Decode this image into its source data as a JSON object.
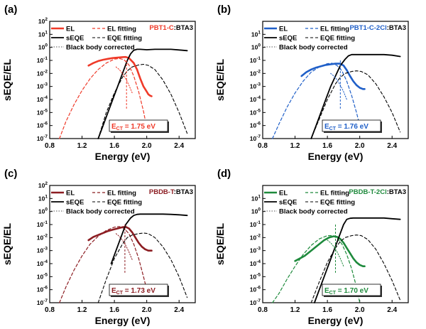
{
  "axis_labels": {
    "x": "Energy (eV)",
    "y": "sEQE/EL"
  },
  "legend_text": {
    "el": "EL",
    "el_fit": "EL fitting",
    "seqe": "sEQE",
    "eqe_fit": "EQE fitting",
    "bb": "Black body corrected"
  },
  "chart_data": [
    {
      "type": "line",
      "panel": "(a)",
      "material": "PBT1-C",
      "acceptor": ":BTA3",
      "color": "#ef3a29",
      "ect_label": "E",
      "ect_sub": "CT",
      "ect_value": " = 1.75 eV",
      "ect": 1.75,
      "xlim": [
        0.8,
        2.6
      ],
      "ylim_log10": [
        -7,
        2
      ],
      "x_ticks": [
        "0.8",
        "1.2",
        "1.6",
        "2.0",
        "2.4"
      ],
      "y_ticks": [
        "10-7",
        "10-6",
        "10-5",
        "10-4",
        "10-3",
        "10-2",
        "10-1",
        "100",
        "101",
        "102"
      ],
      "series": [
        {
          "name": "EL",
          "x": [
            1.28,
            1.34,
            1.4,
            1.46,
            1.52,
            1.58,
            1.64,
            1.7,
            1.74,
            1.78,
            1.84,
            1.88,
            1.92,
            1.96,
            2.0,
            2.02,
            2.04,
            2.06
          ],
          "log10_y": [
            -1.4,
            -1.2,
            -1.05,
            -0.95,
            -0.88,
            -0.82,
            -0.78,
            -0.75,
            -0.74,
            -0.82,
            -1.2,
            -1.7,
            -2.4,
            -3.0,
            -3.4,
            -3.6,
            -3.7,
            -3.75
          ]
        },
        {
          "name": "EL fitting",
          "x": [
            0.92,
            1.0,
            1.1,
            1.2,
            1.3,
            1.4,
            1.5,
            1.6,
            1.66,
            1.72,
            1.78,
            1.84,
            1.9,
            1.96,
            2.0
          ],
          "log10_y": [
            -7.0,
            -5.7,
            -4.4,
            -3.3,
            -2.4,
            -1.7,
            -1.2,
            -0.9,
            -0.85,
            -0.95,
            -1.35,
            -2.2,
            -3.4,
            -4.9,
            -6.2
          ]
        },
        {
          "name": "sEQE",
          "x": [
            1.4,
            1.46,
            1.52,
            1.58,
            1.64,
            1.7,
            1.76,
            1.8,
            1.84,
            1.88,
            1.92,
            2.0,
            2.1,
            2.2,
            2.3,
            2.4,
            2.5
          ],
          "log10_y": [
            -7.0,
            -6.0,
            -5.0,
            -4.0,
            -3.0,
            -2.0,
            -1.0,
            -0.5,
            -0.22,
            -0.15,
            -0.15,
            -0.18,
            -0.15,
            -0.15,
            -0.15,
            -0.2,
            -0.25
          ]
        },
        {
          "name": "EQE fitting",
          "x": [
            1.4,
            1.5,
            1.6,
            1.7,
            1.76,
            1.82,
            1.9,
            1.96,
            2.02,
            2.1,
            2.2,
            2.3,
            2.4,
            2.5
          ],
          "log10_y": [
            -7.0,
            -5.0,
            -3.5,
            -2.3,
            -1.8,
            -1.5,
            -1.35,
            -1.3,
            -1.38,
            -1.7,
            -2.5,
            -3.6,
            -5.0,
            -6.6
          ]
        },
        {
          "name": "Black body corrected",
          "x": [
            1.62,
            1.66,
            1.7,
            1.74,
            1.78,
            1.82
          ],
          "log10_y": [
            -1.5,
            -1.7,
            -2.0,
            -2.4,
            -2.9,
            -3.5
          ]
        }
      ]
    },
    {
      "type": "line",
      "panel": "(b)",
      "material": "PBT1-C-2Cl",
      "acceptor": ":BTA3",
      "color": "#1f5fc8",
      "ect_label": "E",
      "ect_sub": "CT",
      "ect_value": " = 1.76 eV",
      "ect": 1.76,
      "xlim": [
        0.8,
        2.6
      ],
      "ylim_log10": [
        -7,
        2
      ],
      "x_ticks": [
        "0.8",
        "1.2",
        "1.6",
        "2.0",
        "2.4"
      ],
      "y_ticks": [
        "10-7",
        "10-6",
        "10-5",
        "10-4",
        "10-3",
        "10-2",
        "10-1",
        "100",
        "101"
      ],
      "series": [
        {
          "name": "EL",
          "x": [
            1.28,
            1.34,
            1.4,
            1.46,
            1.52,
            1.58,
            1.64,
            1.7,
            1.76,
            1.8,
            1.84,
            1.88,
            1.92,
            1.96,
            2.0,
            2.04,
            2.06
          ],
          "log10_y": [
            -2.2,
            -1.9,
            -1.7,
            -1.55,
            -1.45,
            -1.35,
            -1.3,
            -1.25,
            -1.25,
            -1.4,
            -1.75,
            -2.2,
            -2.6,
            -2.9,
            -3.1,
            -3.2,
            -3.2
          ]
        },
        {
          "name": "EL fitting",
          "x": [
            0.92,
            1.0,
            1.1,
            1.2,
            1.3,
            1.4,
            1.5,
            1.6,
            1.66,
            1.72,
            1.78,
            1.84,
            1.9,
            1.96,
            2.0
          ],
          "log10_y": [
            -7.0,
            -5.9,
            -4.6,
            -3.5,
            -2.6,
            -1.9,
            -1.5,
            -1.25,
            -1.22,
            -1.4,
            -1.8,
            -2.6,
            -3.7,
            -5.0,
            -6.0
          ]
        },
        {
          "name": "sEQE",
          "x": [
            1.4,
            1.46,
            1.52,
            1.58,
            1.64,
            1.7,
            1.76,
            1.82,
            1.86,
            1.9,
            1.95,
            2.0,
            2.1,
            2.2,
            2.3,
            2.4,
            2.5
          ],
          "log10_y": [
            -7.0,
            -6.0,
            -5.0,
            -4.0,
            -3.0,
            -2.2,
            -1.4,
            -0.9,
            -0.65,
            -0.55,
            -0.55,
            -0.55,
            -0.55,
            -0.55,
            -0.55,
            -0.6,
            -0.7
          ]
        },
        {
          "name": "EQE fitting",
          "x": [
            1.4,
            1.5,
            1.6,
            1.7,
            1.76,
            1.82,
            1.9,
            1.96,
            2.02,
            2.1,
            2.2,
            2.3,
            2.4,
            2.5
          ],
          "log10_y": [
            -7.0,
            -5.5,
            -4.0,
            -2.8,
            -2.3,
            -2.0,
            -1.85,
            -1.8,
            -1.85,
            -2.1,
            -2.8,
            -3.8,
            -5.0,
            -6.5
          ]
        },
        {
          "name": "Black body corrected",
          "x": [
            1.64,
            1.68,
            1.72,
            1.76,
            1.8,
            1.84
          ],
          "log10_y": [
            -2.0,
            -2.2,
            -2.5,
            -2.9,
            -3.4,
            -4.0
          ]
        }
      ]
    },
    {
      "type": "line",
      "panel": "(c)",
      "material": "PBDB-T",
      "acceptor": ":BTA3",
      "color": "#8c1d22",
      "ect_label": "E",
      "ect_sub": "CT",
      "ect_value": " = 1.73 eV",
      "ect": 1.73,
      "xlim": [
        0.8,
        2.6
      ],
      "ylim_log10": [
        -7,
        2
      ],
      "x_ticks": [
        "0.8",
        "1.2",
        "1.6",
        "2.0",
        "2.4"
      ],
      "y_ticks": [
        "10-7",
        "10-6",
        "10-5",
        "10-4",
        "10-3",
        "10-2",
        "10-1",
        "100",
        "101",
        "102"
      ],
      "series": [
        {
          "name": "EL",
          "x": [
            1.28,
            1.34,
            1.4,
            1.46,
            1.52,
            1.58,
            1.64,
            1.7,
            1.74,
            1.78,
            1.82,
            1.86,
            1.9,
            1.94,
            1.98,
            2.02,
            2.06
          ],
          "log10_y": [
            -2.2,
            -1.95,
            -1.8,
            -1.65,
            -1.5,
            -1.4,
            -1.3,
            -1.2,
            -1.18,
            -1.3,
            -1.6,
            -2.0,
            -2.4,
            -2.7,
            -2.9,
            -3.0,
            -3.0
          ]
        },
        {
          "name": "EL fitting",
          "x": [
            0.92,
            1.0,
            1.1,
            1.2,
            1.3,
            1.4,
            1.5,
            1.6,
            1.66,
            1.72,
            1.78,
            1.84,
            1.9,
            1.96,
            2.0
          ],
          "log10_y": [
            -7.0,
            -5.8,
            -4.5,
            -3.4,
            -2.5,
            -1.9,
            -1.45,
            -1.2,
            -1.15,
            -1.3,
            -1.7,
            -2.5,
            -3.6,
            -5.0,
            -6.0
          ]
        },
        {
          "name": "sEQE",
          "x": [
            1.56,
            1.62,
            1.68,
            1.74,
            1.8,
            1.84,
            1.88,
            1.92,
            2.0,
            2.1,
            2.2,
            2.3,
            2.4,
            2.5
          ],
          "log10_y": [
            -4.0,
            -3.0,
            -2.0,
            -1.0,
            -0.5,
            -0.3,
            -0.22,
            -0.2,
            -0.2,
            -0.2,
            -0.2,
            -0.22,
            -0.25,
            -0.3
          ]
        },
        {
          "name": "EQE fitting",
          "x": [
            1.4,
            1.5,
            1.6,
            1.7,
            1.76,
            1.82,
            1.9,
            1.96,
            2.02,
            2.1,
            2.2,
            2.3,
            2.4,
            2.5
          ],
          "log10_y": [
            -7.0,
            -5.2,
            -3.6,
            -2.5,
            -2.0,
            -1.8,
            -1.7,
            -1.65,
            -1.7,
            -2.0,
            -2.7,
            -3.7,
            -5.0,
            -6.6
          ]
        },
        {
          "name": "Black body corrected",
          "x": [
            1.62,
            1.66,
            1.7,
            1.74,
            1.78,
            1.82
          ],
          "log10_y": [
            -1.7,
            -1.9,
            -2.2,
            -2.6,
            -3.1,
            -3.7
          ]
        }
      ]
    },
    {
      "type": "line",
      "panel": "(d)",
      "material": "PBDB-T-2Cl",
      "acceptor": ":BTA3",
      "color": "#1e8a3c",
      "ect_label": "E",
      "ect_sub": "CT",
      "ect_value": " = 1.70 eV",
      "ect": 1.7,
      "xlim": [
        0.8,
        2.6
      ],
      "ylim_log10": [
        -7,
        2
      ],
      "x_ticks": [
        "0.8",
        "1.2",
        "1.6",
        "2.0",
        "2.4"
      ],
      "y_ticks": [
        "10-7",
        "10-6",
        "10-5",
        "10-4",
        "10-3",
        "10-2",
        "10-1",
        "100",
        "101"
      ],
      "series": [
        {
          "name": "EL",
          "x": [
            1.2,
            1.26,
            1.32,
            1.38,
            1.44,
            1.5,
            1.56,
            1.62,
            1.68,
            1.72,
            1.76,
            1.8,
            1.84,
            1.88,
            1.92,
            1.96,
            2.0,
            2.04,
            2.06
          ],
          "log10_y": [
            -3.8,
            -3.6,
            -3.4,
            -3.1,
            -2.8,
            -2.5,
            -2.2,
            -2.0,
            -1.9,
            -1.95,
            -2.1,
            -2.4,
            -2.8,
            -3.2,
            -3.6,
            -3.9,
            -4.1,
            -4.2,
            -4.2
          ]
        },
        {
          "name": "EL fitting",
          "x": [
            0.92,
            1.0,
            1.1,
            1.2,
            1.3,
            1.4,
            1.5,
            1.6,
            1.66,
            1.72,
            1.78,
            1.84,
            1.9,
            1.96,
            2.0
          ],
          "log10_y": [
            -7.0,
            -6.3,
            -5.2,
            -4.2,
            -3.3,
            -2.6,
            -2.1,
            -1.85,
            -1.85,
            -2.05,
            -2.5,
            -3.3,
            -4.4,
            -5.8,
            -7.0
          ]
        },
        {
          "name": "sEQE",
          "x": [
            1.44,
            1.5,
            1.56,
            1.62,
            1.68,
            1.74,
            1.8,
            1.84,
            1.88,
            1.92,
            2.0,
            2.1,
            2.2,
            2.3,
            2.4,
            2.5
          ],
          "log10_y": [
            -7.0,
            -6.0,
            -5.0,
            -4.0,
            -3.0,
            -2.0,
            -1.0,
            -0.6,
            -0.52,
            -0.5,
            -0.5,
            -0.5,
            -0.5,
            -0.5,
            -0.55,
            -0.6
          ]
        },
        {
          "name": "EQE fitting",
          "x": [
            1.4,
            1.5,
            1.6,
            1.7,
            1.76,
            1.82,
            1.9,
            1.96,
            2.02,
            2.1,
            2.2,
            2.3,
            2.4,
            2.5
          ],
          "log10_y": [
            -7.0,
            -5.4,
            -3.9,
            -2.8,
            -2.3,
            -2.0,
            -1.85,
            -1.8,
            -1.85,
            -2.15,
            -2.9,
            -4.0,
            -5.3,
            -6.8
          ]
        },
        {
          "name": "Black body corrected",
          "x": [
            1.6,
            1.64,
            1.68,
            1.72,
            1.76,
            1.8
          ],
          "log10_y": [
            -2.2,
            -2.4,
            -2.7,
            -3.1,
            -3.6,
            -4.2
          ]
        }
      ]
    }
  ]
}
